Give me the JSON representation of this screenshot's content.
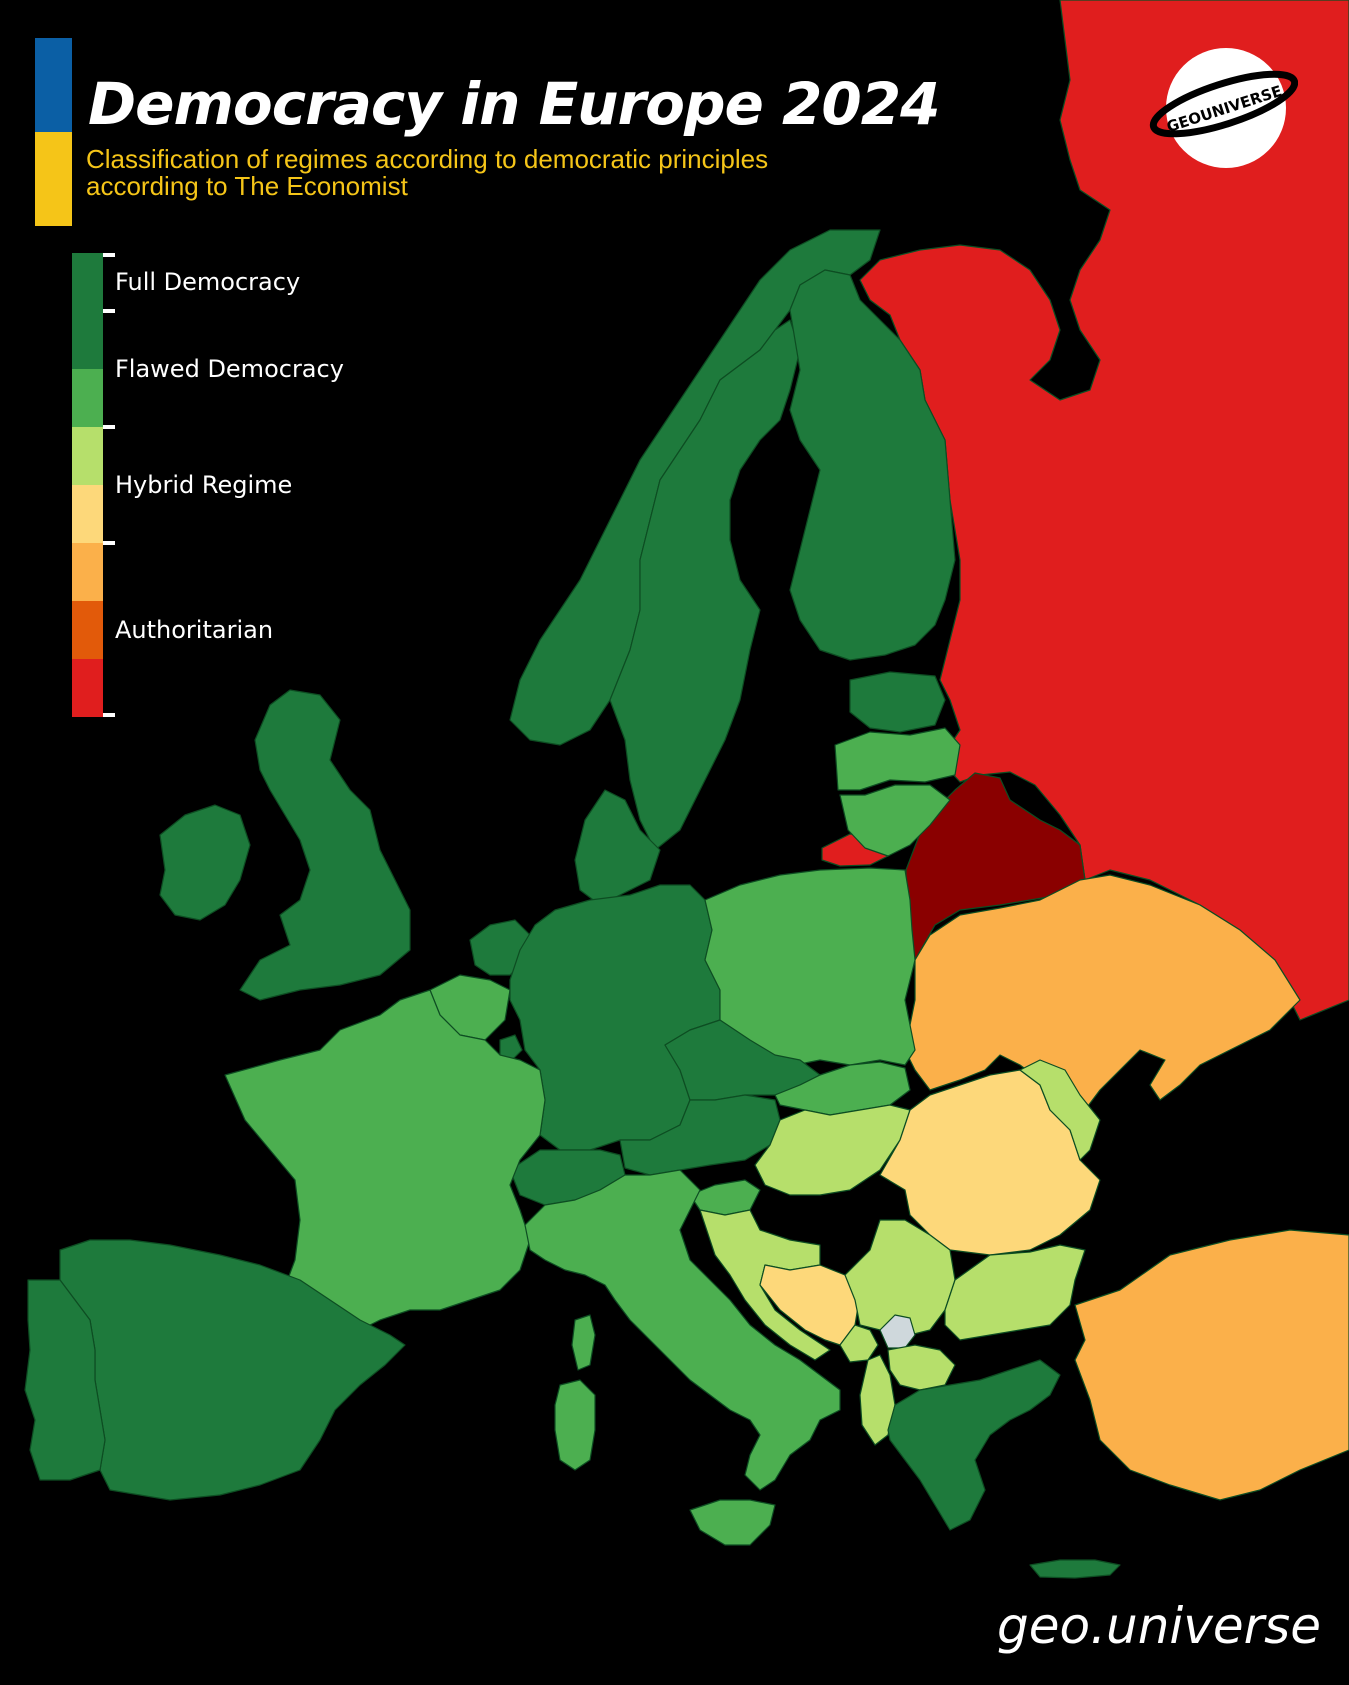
{
  "header": {
    "title": "Democracy in Europe 2024",
    "subtitle": "Classification of regimes according to democratic principles according to The Economist",
    "subtitle_color": "#f5c518",
    "flag_colors": [
      "#0b5fa5",
      "#f5c518"
    ]
  },
  "legend": {
    "categories": [
      {
        "label": "Full Democracy",
        "shades": [
          "#1e7a3c",
          "#1e7a3c"
        ]
      },
      {
        "label": "Flawed Democracy",
        "shades": [
          "#4caf50",
          "#b6df6b"
        ]
      },
      {
        "label": "Hybrid Regime",
        "shades": [
          "#fdd87a",
          "#fbb04a"
        ]
      },
      {
        "label": "Authoritarian",
        "shades": [
          "#e25a0a",
          "#e01e1e",
          "#8a0000"
        ]
      }
    ]
  },
  "logo": {
    "text": "GEOUNIVERSE",
    "icon": "planet-ring-logo"
  },
  "watermark": "geo.universe",
  "map_data": {
    "regions": [
      {
        "name": "Norway",
        "category": "Full Democracy",
        "color": "#1e7a3c"
      },
      {
        "name": "Sweden",
        "category": "Full Democracy",
        "color": "#1e7a3c"
      },
      {
        "name": "Finland",
        "category": "Full Democracy",
        "color": "#1e7a3c"
      },
      {
        "name": "Denmark",
        "category": "Full Democracy",
        "color": "#1e7a3c"
      },
      {
        "name": "Iceland",
        "category": "Full Democracy",
        "color": "#1e7a3c"
      },
      {
        "name": "Ireland",
        "category": "Full Democracy",
        "color": "#1e7a3c"
      },
      {
        "name": "United Kingdom",
        "category": "Full Democracy",
        "color": "#1e7a3c"
      },
      {
        "name": "Germany",
        "category": "Full Democracy",
        "color": "#1e7a3c"
      },
      {
        "name": "Netherlands",
        "category": "Full Democracy",
        "color": "#1e7a3c"
      },
      {
        "name": "Luxembourg",
        "category": "Full Democracy",
        "color": "#1e7a3c"
      },
      {
        "name": "Switzerland",
        "category": "Full Democracy",
        "color": "#1e7a3c"
      },
      {
        "name": "Austria",
        "category": "Full Democracy",
        "color": "#1e7a3c"
      },
      {
        "name": "Czechia",
        "category": "Full Democracy",
        "color": "#1e7a3c"
      },
      {
        "name": "Estonia",
        "category": "Full Democracy",
        "color": "#1e7a3c"
      },
      {
        "name": "Spain",
        "category": "Full Democracy",
        "color": "#1e7a3c"
      },
      {
        "name": "Portugal",
        "category": "Full Democracy",
        "color": "#1e7a3c"
      },
      {
        "name": "Greece",
        "category": "Full Democracy",
        "color": "#1e7a3c"
      },
      {
        "name": "France",
        "category": "Flawed Democracy",
        "color": "#4caf50"
      },
      {
        "name": "Belgium",
        "category": "Flawed Democracy",
        "color": "#4caf50"
      },
      {
        "name": "Italy",
        "category": "Flawed Democracy",
        "color": "#4caf50"
      },
      {
        "name": "Poland",
        "category": "Flawed Democracy",
        "color": "#4caf50"
      },
      {
        "name": "Slovakia",
        "category": "Flawed Democracy",
        "color": "#4caf50"
      },
      {
        "name": "Slovenia",
        "category": "Flawed Democracy",
        "color": "#4caf50"
      },
      {
        "name": "Latvia",
        "category": "Flawed Democracy",
        "color": "#4caf50"
      },
      {
        "name": "Lithuania",
        "category": "Flawed Democracy",
        "color": "#4caf50"
      },
      {
        "name": "Hungary",
        "category": "Flawed Democracy",
        "color": "#b6df6b"
      },
      {
        "name": "Croatia",
        "category": "Flawed Democracy",
        "color": "#b6df6b"
      },
      {
        "name": "Serbia",
        "category": "Flawed Democracy",
        "color": "#b6df6b"
      },
      {
        "name": "Montenegro",
        "category": "Flawed Democracy",
        "color": "#b6df6b"
      },
      {
        "name": "Albania",
        "category": "Flawed Democracy",
        "color": "#b6df6b"
      },
      {
        "name": "North Macedonia",
        "category": "Flawed Democracy",
        "color": "#b6df6b"
      },
      {
        "name": "Bulgaria",
        "category": "Flawed Democracy",
        "color": "#b6df6b"
      },
      {
        "name": "Moldova",
        "category": "Flawed Democracy",
        "color": "#b6df6b"
      },
      {
        "name": "Romania",
        "category": "Hybrid Regime",
        "color": "#fdd87a"
      },
      {
        "name": "Bosnia and Herzegovina",
        "category": "Hybrid Regime",
        "color": "#fdd87a"
      },
      {
        "name": "Ukraine",
        "category": "Hybrid Regime",
        "color": "#fbb04a"
      },
      {
        "name": "Turkey",
        "category": "Hybrid Regime",
        "color": "#fbb04a"
      },
      {
        "name": "Russia",
        "category": "Authoritarian",
        "color": "#e01e1e"
      },
      {
        "name": "Kaliningrad",
        "category": "Authoritarian",
        "color": "#e01e1e"
      },
      {
        "name": "Belarus",
        "category": "Authoritarian",
        "color": "#8a0000"
      },
      {
        "name": "Kosovo",
        "category": "No data",
        "color": "#cfd8dc"
      }
    ],
    "sea_color": "#000000",
    "border_color": "#0d4d22"
  }
}
